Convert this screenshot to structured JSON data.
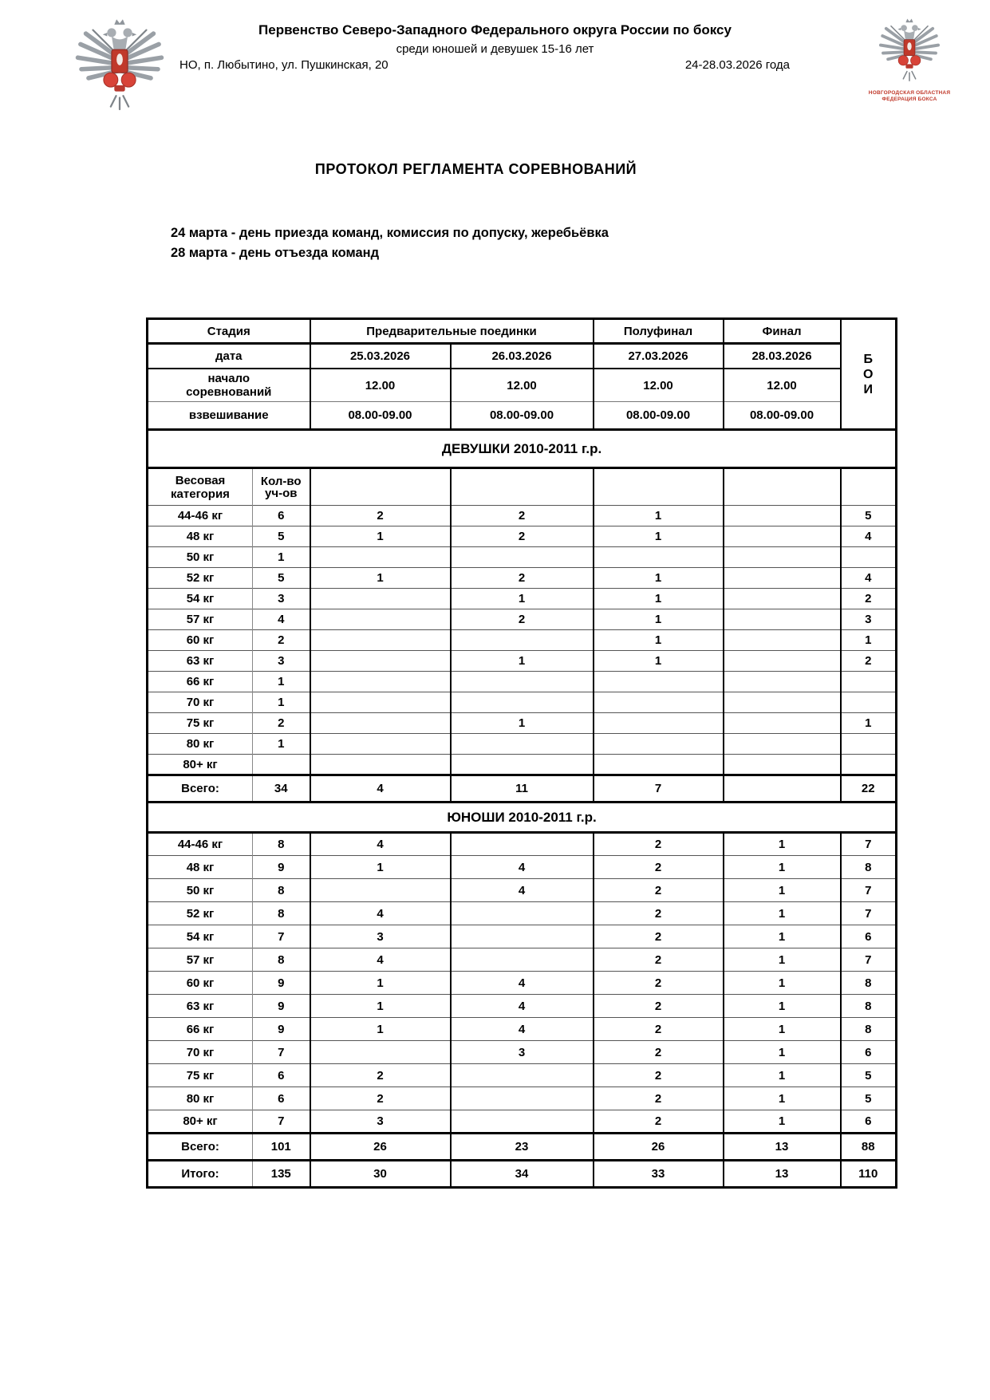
{
  "header": {
    "title_line1": "Первенство Северо-Западного Федерального округа России по боксу",
    "title_line2": "среди юношей и девушек 15-16 лет",
    "venue": "НО, п. Любытино, ул. Пушкинская, 20",
    "dates": "24-28.03.2026 года",
    "left_emblem": "boxing-federation-eagle",
    "right_emblem": "novgorod-federation-eagle",
    "right_emblem_caption1": "НОВГОРОДСКАЯ ОБЛАСТНАЯ",
    "right_emblem_caption2": "ФЕДЕРАЦИЯ БОКСА"
  },
  "document": {
    "title": "ПРОТОКОЛ РЕГЛАМЕНТА СОРЕВНОВАНИЙ",
    "note_line1": "24 марта - день приезда команд, комиссия по допуску, жеребьёвка",
    "note_line2": "28 марта - день отъезда команд"
  },
  "schedule": {
    "stage_label": "Стадия",
    "stage_prelim": "Предварительные поединки",
    "stage_semifinal": "Полуфинал",
    "stage_final": "Финал",
    "bouts_letters": [
      "Б",
      "О",
      "И"
    ],
    "date_label": "дата",
    "dates": [
      "25.03.2026",
      "26.03.2026",
      "27.03.2026",
      "28.03.2026"
    ],
    "start_label_line1": "начало",
    "start_label_line2": "соревнований",
    "start_times": [
      "12.00",
      "12.00",
      "12.00",
      "12.00"
    ],
    "weighin_label": "взвешивание",
    "weighin_times": [
      "08.00-09.00",
      "08.00-09.00",
      "08.00-09.00",
      "08.00-09.00"
    ]
  },
  "columns": {
    "weight_label_line1": "Весовая",
    "weight_label_line2": "категория",
    "count_label_line1": "Кол-во",
    "count_label_line2": "уч-ов"
  },
  "girls": {
    "banner": "ДЕВУШКИ 2010-2011 г.р.",
    "rows": [
      [
        "44-46 кг",
        "6",
        "2",
        "2",
        "1",
        "",
        "5"
      ],
      [
        "48 кг",
        "5",
        "1",
        "2",
        "1",
        "",
        "4"
      ],
      [
        "50 кг",
        "1",
        "",
        "",
        "",
        "",
        ""
      ],
      [
        "52 кг",
        "5",
        "1",
        "2",
        "1",
        "",
        "4"
      ],
      [
        "54 кг",
        "3",
        "",
        "1",
        "1",
        "",
        "2"
      ],
      [
        "57 кг",
        "4",
        "",
        "2",
        "1",
        "",
        "3"
      ],
      [
        "60 кг",
        "2",
        "",
        "",
        "1",
        "",
        "1"
      ],
      [
        "63 кг",
        "3",
        "",
        "1",
        "1",
        "",
        "2"
      ],
      [
        "66 кг",
        "1",
        "",
        "",
        "",
        "",
        ""
      ],
      [
        "70 кг",
        "1",
        "",
        "",
        "",
        "",
        ""
      ],
      [
        "75 кг",
        "2",
        "",
        "1",
        "",
        "",
        "1"
      ],
      [
        "80 кг",
        "1",
        "",
        "",
        "",
        "",
        ""
      ],
      [
        "80+ кг",
        "",
        "",
        "",
        "",
        "",
        ""
      ]
    ],
    "total": [
      "Всего:",
      "34",
      "4",
      "11",
      "7",
      "",
      "22"
    ]
  },
  "boys": {
    "banner": "ЮНОШИ 2010-2011 г.р.",
    "rows": [
      [
        "44-46 кг",
        "8",
        "4",
        "",
        "2",
        "1",
        "7"
      ],
      [
        "48 кг",
        "9",
        "1",
        "4",
        "2",
        "1",
        "8"
      ],
      [
        "50 кг",
        "8",
        "",
        "4",
        "2",
        "1",
        "7"
      ],
      [
        "52 кг",
        "8",
        "4",
        "",
        "2",
        "1",
        "7"
      ],
      [
        "54 кг",
        "7",
        "3",
        "",
        "2",
        "1",
        "6"
      ],
      [
        "57 кг",
        "8",
        "4",
        "",
        "2",
        "1",
        "7"
      ],
      [
        "60 кг",
        "9",
        "1",
        "4",
        "2",
        "1",
        "8"
      ],
      [
        "63 кг",
        "9",
        "1",
        "4",
        "2",
        "1",
        "8"
      ],
      [
        "66 кг",
        "9",
        "1",
        "4",
        "2",
        "1",
        "8"
      ],
      [
        "70 кг",
        "7",
        "",
        "3",
        "2",
        "1",
        "6"
      ],
      [
        "75 кг",
        "6",
        "2",
        "",
        "2",
        "1",
        "5"
      ],
      [
        "80 кг",
        "6",
        "2",
        "",
        "2",
        "1",
        "5"
      ],
      [
        "80+ кг",
        "7",
        "3",
        "",
        "2",
        "1",
        "6"
      ]
    ],
    "total": [
      "Всего:",
      "101",
      "26",
      "23",
      "26",
      "13",
      "88"
    ]
  },
  "grand_total": [
    "Итого:",
    "135",
    "30",
    "34",
    "33",
    "13",
    "110"
  ]
}
